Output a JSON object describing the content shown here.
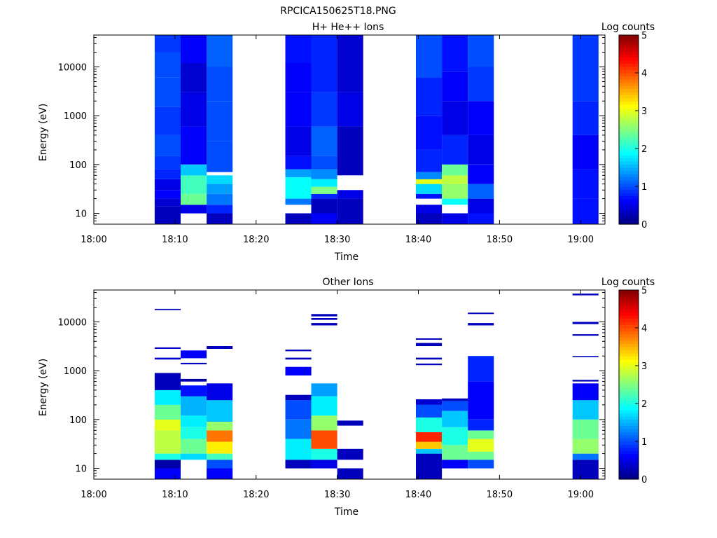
{
  "figure_title": "RPCICA150625T18.PNG",
  "chart_data": [
    {
      "type": "heatmap",
      "title": "H+ He++ Ions",
      "xlabel": "Time",
      "ylabel": "Energy (eV)",
      "yscale": "log",
      "xlim": [
        "18:00",
        "19:03"
      ],
      "ylim": [
        6,
        45000
      ],
      "x_ticks": [
        "18:00",
        "18:10",
        "18:20",
        "18:30",
        "18:40",
        "18:50",
        "19:00"
      ],
      "y_ticks": [
        "10",
        "100",
        "1000",
        "10000"
      ],
      "colorbar": {
        "label": "Log counts",
        "range": [
          0,
          5
        ],
        "ticks": [
          "0",
          "1",
          "2",
          "3",
          "4",
          "5"
        ],
        "colormap": "jet"
      },
      "time_columns": [
        {
          "start": "18:07.5",
          "end": "18:10.7",
          "cells": [
            [
              6,
              10,
              0.3
            ],
            [
              10,
              14,
              0.3
            ],
            [
              14,
              20,
              0.4
            ],
            [
              20,
              30,
              0.6
            ],
            [
              30,
              50,
              0.5
            ],
            [
              50,
              80,
              0.8
            ],
            [
              80,
              150,
              0.9
            ],
            [
              150,
              400,
              1.0
            ],
            [
              400,
              1500,
              0.9
            ],
            [
              1500,
              6000,
              1.0
            ],
            [
              6000,
              20000,
              1.0
            ],
            [
              20000,
              45000,
              0.9
            ]
          ]
        },
        {
          "start": "18:10.7",
          "end": "18:13.9",
          "cells": [
            [
              6,
              10,
              null
            ],
            [
              10,
              15,
              0.5
            ],
            [
              15,
              25,
              2.4
            ],
            [
              25,
              60,
              2.2
            ],
            [
              60,
              100,
              1.6
            ],
            [
              100,
              600,
              0.6
            ],
            [
              600,
              3000,
              0.5
            ],
            [
              3000,
              12000,
              0.4
            ],
            [
              12000,
              45000,
              0.6
            ]
          ]
        },
        {
          "start": "18:13.9",
          "end": "18:17.1",
          "cells": [
            [
              6,
              10,
              0.3
            ],
            [
              10,
              15,
              0.8
            ],
            [
              15,
              25,
              1.2
            ],
            [
              25,
              40,
              1.4
            ],
            [
              40,
              60,
              1.7
            ],
            [
              60,
              70,
              null
            ],
            [
              70,
              300,
              1.0
            ],
            [
              300,
              2000,
              1.0
            ],
            [
              2000,
              10000,
              1.0
            ],
            [
              10000,
              45000,
              1.1
            ]
          ]
        },
        {
          "start": "18:23.6",
          "end": "18:26.8",
          "cells": [
            [
              6,
              10,
              0.3
            ],
            [
              10,
              15,
              null
            ],
            [
              15,
              20,
              1.2
            ],
            [
              20,
              55,
              1.9
            ],
            [
              55,
              80,
              1.4
            ],
            [
              80,
              150,
              0.7
            ],
            [
              150,
              600,
              0.5
            ],
            [
              600,
              3000,
              0.6
            ],
            [
              3000,
              12000,
              0.6
            ],
            [
              12000,
              45000,
              0.7
            ]
          ]
        },
        {
          "start": "18:26.8",
          "end": "18:30.0",
          "cells": [
            [
              6,
              10,
              0.6
            ],
            [
              10,
              20,
              0.3
            ],
            [
              20,
              25,
              0.8
            ],
            [
              25,
              35,
              2.5
            ],
            [
              35,
              50,
              1.8
            ],
            [
              50,
              80,
              1.3
            ],
            [
              80,
              150,
              1.0
            ],
            [
              150,
              600,
              1.1
            ],
            [
              600,
              3000,
              0.9
            ],
            [
              3000,
              12000,
              0.8
            ],
            [
              12000,
              45000,
              0.8
            ]
          ]
        },
        {
          "start": "18:30.0",
          "end": "18:33.2",
          "cells": [
            [
              6,
              20,
              0.3
            ],
            [
              20,
              30,
              0.5
            ],
            [
              30,
              60,
              null
            ],
            [
              60,
              600,
              0.3
            ],
            [
              600,
              3000,
              0.5
            ],
            [
              3000,
              12000,
              0.4
            ],
            [
              12000,
              45000,
              0.4
            ]
          ]
        },
        {
          "start": "18:39.7",
          "end": "18:42.9",
          "cells": [
            [
              6,
              10,
              0.3
            ],
            [
              10,
              15,
              0.5
            ],
            [
              15,
              20,
              null
            ],
            [
              20,
              25,
              0.7
            ],
            [
              25,
              40,
              1.7
            ],
            [
              40,
              50,
              3.0
            ],
            [
              50,
              70,
              1.3
            ],
            [
              70,
              200,
              0.8
            ],
            [
              200,
              1000,
              0.7
            ],
            [
              1000,
              6000,
              0.8
            ],
            [
              6000,
              45000,
              1.0
            ]
          ]
        },
        {
          "start": "18:42.9",
          "end": "18:46.1",
          "cells": [
            [
              6,
              10,
              0.5
            ],
            [
              10,
              15,
              null
            ],
            [
              15,
              20,
              1.9
            ],
            [
              20,
              40,
              2.6
            ],
            [
              40,
              60,
              2.8
            ],
            [
              60,
              100,
              2.4
            ],
            [
              100,
              400,
              0.8
            ],
            [
              400,
              2000,
              0.5
            ],
            [
              2000,
              8000,
              0.6
            ],
            [
              8000,
              45000,
              0.7
            ]
          ]
        },
        {
          "start": "18:46.1",
          "end": "18:49.3",
          "cells": [
            [
              6,
              10,
              0.7
            ],
            [
              10,
              20,
              0.5
            ],
            [
              20,
              40,
              1.1
            ],
            [
              40,
              100,
              0.6
            ],
            [
              100,
              400,
              0.5
            ],
            [
              400,
              2000,
              0.6
            ],
            [
              2000,
              10000,
              0.9
            ],
            [
              10000,
              45000,
              1.0
            ]
          ]
        },
        {
          "start": "18:59.0",
          "end": "19:02.2",
          "cells": [
            [
              6,
              20,
              0.7
            ],
            [
              20,
              80,
              0.7
            ],
            [
              80,
              400,
              0.6
            ],
            [
              400,
              2000,
              0.8
            ],
            [
              2000,
              10000,
              0.9
            ],
            [
              10000,
              45000,
              0.9
            ]
          ]
        }
      ]
    },
    {
      "type": "heatmap",
      "title": "Other Ions",
      "xlabel": "Time",
      "ylabel": "Energy (eV)",
      "yscale": "log",
      "xlim": [
        "18:00",
        "19:03"
      ],
      "ylim": [
        6,
        45000
      ],
      "x_ticks": [
        "18:00",
        "18:10",
        "18:20",
        "18:30",
        "18:40",
        "18:50",
        "19:00"
      ],
      "y_ticks": [
        "10",
        "100",
        "1000",
        "10000"
      ],
      "colorbar": {
        "label": "Log counts",
        "range": [
          0,
          5
        ],
        "ticks": [
          "0",
          "1",
          "2",
          "3",
          "4",
          "5"
        ],
        "colormap": "jet"
      },
      "time_columns": [
        {
          "start": "18:07.5",
          "end": "18:10.7",
          "cells": [
            [
              6,
              10,
              0.6
            ],
            [
              10,
              15,
              0.2
            ],
            [
              15,
              20,
              2.0
            ],
            [
              20,
              60,
              2.8
            ],
            [
              60,
              100,
              3.0
            ],
            [
              100,
              200,
              2.4
            ],
            [
              200,
              400,
              1.8
            ],
            [
              400,
              900,
              0.3
            ],
            [
              2800,
              3000,
              0.3
            ],
            [
              1700,
              1850,
              0.4
            ],
            [
              17500,
              18500,
              0.3
            ]
          ]
        },
        {
          "start": "18:10.7",
          "end": "18:13.9",
          "cells": [
            [
              15,
              20,
              1.7
            ],
            [
              20,
              40,
              2.4
            ],
            [
              40,
              70,
              2.0
            ],
            [
              70,
              120,
              1.8
            ],
            [
              120,
              300,
              1.5
            ],
            [
              300,
              500,
              0.7
            ],
            [
              600,
              680,
              0.2
            ],
            [
              1350,
              1450,
              0.3
            ],
            [
              1800,
              2600,
              0.6
            ]
          ]
        },
        {
          "start": "18:13.9",
          "end": "18:17.1",
          "cells": [
            [
              6,
              10,
              0.6
            ],
            [
              10,
              15,
              1.0
            ],
            [
              15,
              20,
              2.2
            ],
            [
              20,
              35,
              3.2
            ],
            [
              35,
              60,
              3.8
            ],
            [
              60,
              90,
              2.6
            ],
            [
              90,
              250,
              1.6
            ],
            [
              250,
              550,
              0.5
            ],
            [
              2800,
              3200,
              0.3
            ]
          ]
        },
        {
          "start": "18:23.6",
          "end": "18:26.8",
          "cells": [
            [
              10,
              15,
              0.3
            ],
            [
              15,
              40,
              1.8
            ],
            [
              40,
              100,
              1.2
            ],
            [
              100,
              250,
              1.0
            ],
            [
              250,
              320,
              0.3
            ],
            [
              800,
              1200,
              0.6
            ],
            [
              1700,
              1850,
              0.3
            ],
            [
              2500,
              2700,
              0.3
            ]
          ]
        },
        {
          "start": "18:26.8",
          "end": "18:30.0",
          "cells": [
            [
              10,
              15,
              0.5
            ],
            [
              15,
              25,
              2.0
            ],
            [
              25,
              60,
              4.0
            ],
            [
              60,
              120,
              2.6
            ],
            [
              120,
              300,
              1.8
            ],
            [
              300,
              550,
              1.4
            ],
            [
              8500,
              9500,
              0.3
            ],
            [
              11000,
              12000,
              0.3
            ],
            [
              13000,
              14500,
              0.3
            ]
          ]
        },
        {
          "start": "18:30.0",
          "end": "18:33.2",
          "cells": [
            [
              6,
              10,
              0.3
            ],
            [
              15,
              25,
              0.3
            ],
            [
              75,
              95,
              0.3
            ]
          ]
        },
        {
          "start": "18:39.7",
          "end": "18:42.9",
          "cells": [
            [
              6,
              20,
              0.3
            ],
            [
              20,
              25,
              1.6
            ],
            [
              25,
              35,
              3.4
            ],
            [
              35,
              55,
              4.2
            ],
            [
              55,
              110,
              2.0
            ],
            [
              110,
              200,
              1.0
            ],
            [
              200,
              260,
              0.4
            ],
            [
              1300,
              1400,
              0.3
            ],
            [
              1700,
              1850,
              0.3
            ],
            [
              3200,
              3700,
              0.3
            ],
            [
              4300,
              4600,
              0.3
            ]
          ]
        },
        {
          "start": "18:42.9",
          "end": "18:46.1",
          "cells": [
            [
              10,
              15,
              0.6
            ],
            [
              15,
              30,
              2.4
            ],
            [
              30,
              70,
              2.0
            ],
            [
              70,
              150,
              1.6
            ],
            [
              150,
              240,
              1.0
            ],
            [
              240,
              270,
              0.3
            ]
          ]
        },
        {
          "start": "18:46.1",
          "end": "18:49.3",
          "cells": [
            [
              10,
              15,
              1.0
            ],
            [
              15,
              22,
              2.4
            ],
            [
              22,
              40,
              3.0
            ],
            [
              40,
              60,
              2.4
            ],
            [
              60,
              100,
              0.8
            ],
            [
              100,
              600,
              0.6
            ],
            [
              600,
              2000,
              0.8
            ],
            [
              8500,
              9500,
              0.3
            ],
            [
              14500,
              15500,
              0.3
            ]
          ]
        },
        {
          "start": "18:59.0",
          "end": "19:02.2",
          "cells": [
            [
              6,
              15,
              0.3
            ],
            [
              15,
              20,
              1.2
            ],
            [
              20,
              40,
              2.6
            ],
            [
              40,
              100,
              2.4
            ],
            [
              100,
              250,
              1.6
            ],
            [
              250,
              550,
              0.6
            ],
            [
              600,
              650,
              0.3
            ],
            [
              1900,
              2000,
              0.3
            ],
            [
              5200,
              5600,
              0.3
            ],
            [
              9000,
              10000,
              0.3
            ],
            [
              35000,
              38000,
              0.3
            ]
          ]
        }
      ]
    }
  ]
}
